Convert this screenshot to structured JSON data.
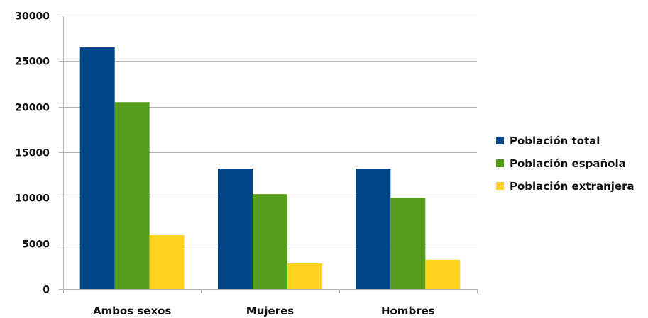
{
  "chart_data": {
    "type": "bar",
    "categories": [
      "Ambos sexos",
      "Mujeres",
      "Hombres"
    ],
    "series": [
      {
        "name": "Población total",
        "color": "#004586",
        "values": [
          26500,
          13200,
          13200
        ]
      },
      {
        "name": "Población española",
        "color": "#579d1c",
        "values": [
          20500,
          10400,
          10000
        ]
      },
      {
        "name": "Población extranjera",
        "color": "#ffd320",
        "values": [
          5900,
          2800,
          3200
        ]
      }
    ],
    "yticks": [
      "0",
      "5000",
      "10000",
      "15000",
      "20000",
      "25000",
      "30000"
    ],
    "ylim": [
      0,
      30000
    ],
    "grid": true,
    "legend_position": "right"
  }
}
